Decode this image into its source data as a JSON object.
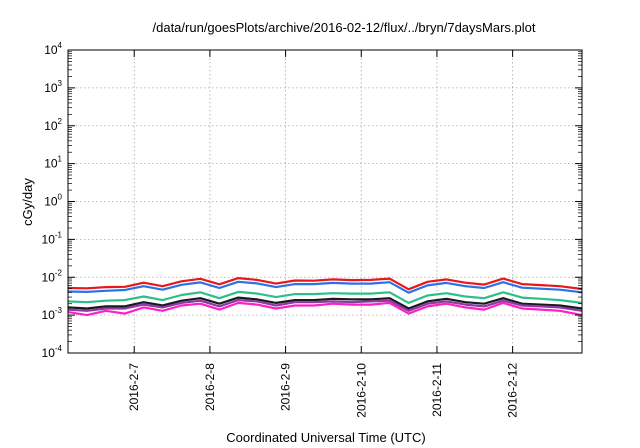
{
  "chart_data": {
    "type": "line",
    "title": "/data/run/goesPlots/archive/2016-02-12/flux/../bryn/7daysMars.plot",
    "xlabel": "Coordinated Universal Time (UTC)",
    "ylabel": "cGy/day",
    "yscale": "log",
    "ylim": [
      0.0001,
      10000
    ],
    "y_ticks": [
      {
        "base": "10",
        "exp": "-4",
        "value": 0.0001
      },
      {
        "base": "10",
        "exp": "-3",
        "value": 0.001
      },
      {
        "base": "10",
        "exp": "-2",
        "value": 0.01
      },
      {
        "base": "10",
        "exp": "-1",
        "value": 0.1
      },
      {
        "base": "10",
        "exp": "0",
        "value": 1
      },
      {
        "base": "10",
        "exp": "1",
        "value": 10
      },
      {
        "base": "10",
        "exp": "2",
        "value": 100
      },
      {
        "base": "10",
        "exp": "3",
        "value": 1000
      },
      {
        "base": "10",
        "exp": "4",
        "value": 10000
      }
    ],
    "xlim": [
      "2016-02-06T03:00",
      "2016-02-12T22:00"
    ],
    "x_ticks": [
      "2016-2-7",
      "2016-2-8",
      "2016-2-9",
      "2016-2-10",
      "2016-2-11",
      "2016-2-12"
    ],
    "grid": true,
    "legend": "none",
    "x": [
      "2016-02-06T03:00",
      "2016-02-06T09:00",
      "2016-02-06T15:00",
      "2016-02-06T21:00",
      "2016-02-07T03:00",
      "2016-02-07T09:00",
      "2016-02-07T15:00",
      "2016-02-07T21:00",
      "2016-02-08T03:00",
      "2016-02-08T09:00",
      "2016-02-08T15:00",
      "2016-02-08T21:00",
      "2016-02-09T03:00",
      "2016-02-09T09:00",
      "2016-02-09T15:00",
      "2016-02-09T21:00",
      "2016-02-10T03:00",
      "2016-02-10T09:00",
      "2016-02-10T15:00",
      "2016-02-10T21:00",
      "2016-02-11T03:00",
      "2016-02-11T09:00",
      "2016-02-11T15:00",
      "2016-02-11T21:00",
      "2016-02-12T03:00",
      "2016-02-12T09:00",
      "2016-02-12T15:00",
      "2016-02-12T22:00"
    ],
    "series": [
      {
        "color": "#e8171b",
        "values": [
          0.0052,
          0.0051,
          0.0055,
          0.0056,
          0.0072,
          0.0058,
          0.0078,
          0.0091,
          0.0065,
          0.0095,
          0.0085,
          0.0068,
          0.0082,
          0.0081,
          0.0088,
          0.0084,
          0.0085,
          0.0092,
          0.0048,
          0.0076,
          0.0088,
          0.0072,
          0.0064,
          0.0092,
          0.0066,
          0.0062,
          0.0058,
          0.0049
        ]
      },
      {
        "color": "#2a72e6",
        "values": [
          0.0042,
          0.0041,
          0.0044,
          0.0046,
          0.0058,
          0.0047,
          0.0063,
          0.0073,
          0.0052,
          0.0076,
          0.0069,
          0.0055,
          0.0066,
          0.0066,
          0.0071,
          0.0068,
          0.0068,
          0.0074,
          0.0039,
          0.0061,
          0.0071,
          0.0058,
          0.0052,
          0.0074,
          0.0053,
          0.005,
          0.0047,
          0.004
        ]
      },
      {
        "color": "#2dbf8a",
        "values": [
          0.0023,
          0.0022,
          0.0024,
          0.0025,
          0.0031,
          0.0025,
          0.0034,
          0.004,
          0.0028,
          0.0041,
          0.0037,
          0.003,
          0.0036,
          0.0036,
          0.0038,
          0.0037,
          0.0037,
          0.004,
          0.0021,
          0.0033,
          0.0038,
          0.0031,
          0.0028,
          0.004,
          0.0029,
          0.0027,
          0.0025,
          0.0021
        ]
      },
      {
        "color": "#1a1a1a",
        "values": [
          0.0016,
          0.0015,
          0.0017,
          0.0017,
          0.0022,
          0.0018,
          0.0024,
          0.0028,
          0.002,
          0.0029,
          0.0026,
          0.0021,
          0.0025,
          0.0025,
          0.0027,
          0.0026,
          0.0026,
          0.0028,
          0.0015,
          0.0023,
          0.0027,
          0.0022,
          0.002,
          0.0028,
          0.002,
          0.0019,
          0.0018,
          0.0015
        ]
      },
      {
        "color": "#8e3aa6",
        "values": [
          0.0014,
          0.0013,
          0.0015,
          0.0015,
          0.0019,
          0.0016,
          0.0021,
          0.0024,
          0.0017,
          0.0025,
          0.0023,
          0.0018,
          0.0022,
          0.0022,
          0.0023,
          0.0022,
          0.0023,
          0.0024,
          0.0013,
          0.002,
          0.0023,
          0.0019,
          0.0017,
          0.0024,
          0.0018,
          0.0017,
          0.0016,
          0.0013
        ]
      },
      {
        "color": "#ff1fc9",
        "values": [
          0.0012,
          0.001,
          0.0013,
          0.0011,
          0.0016,
          0.0013,
          0.0018,
          0.002,
          0.0014,
          0.0021,
          0.0019,
          0.0015,
          0.0018,
          0.0018,
          0.002,
          0.0019,
          0.0019,
          0.0021,
          0.0011,
          0.0017,
          0.002,
          0.0016,
          0.0014,
          0.0021,
          0.0015,
          0.0014,
          0.0013,
          0.001
        ]
      }
    ]
  }
}
